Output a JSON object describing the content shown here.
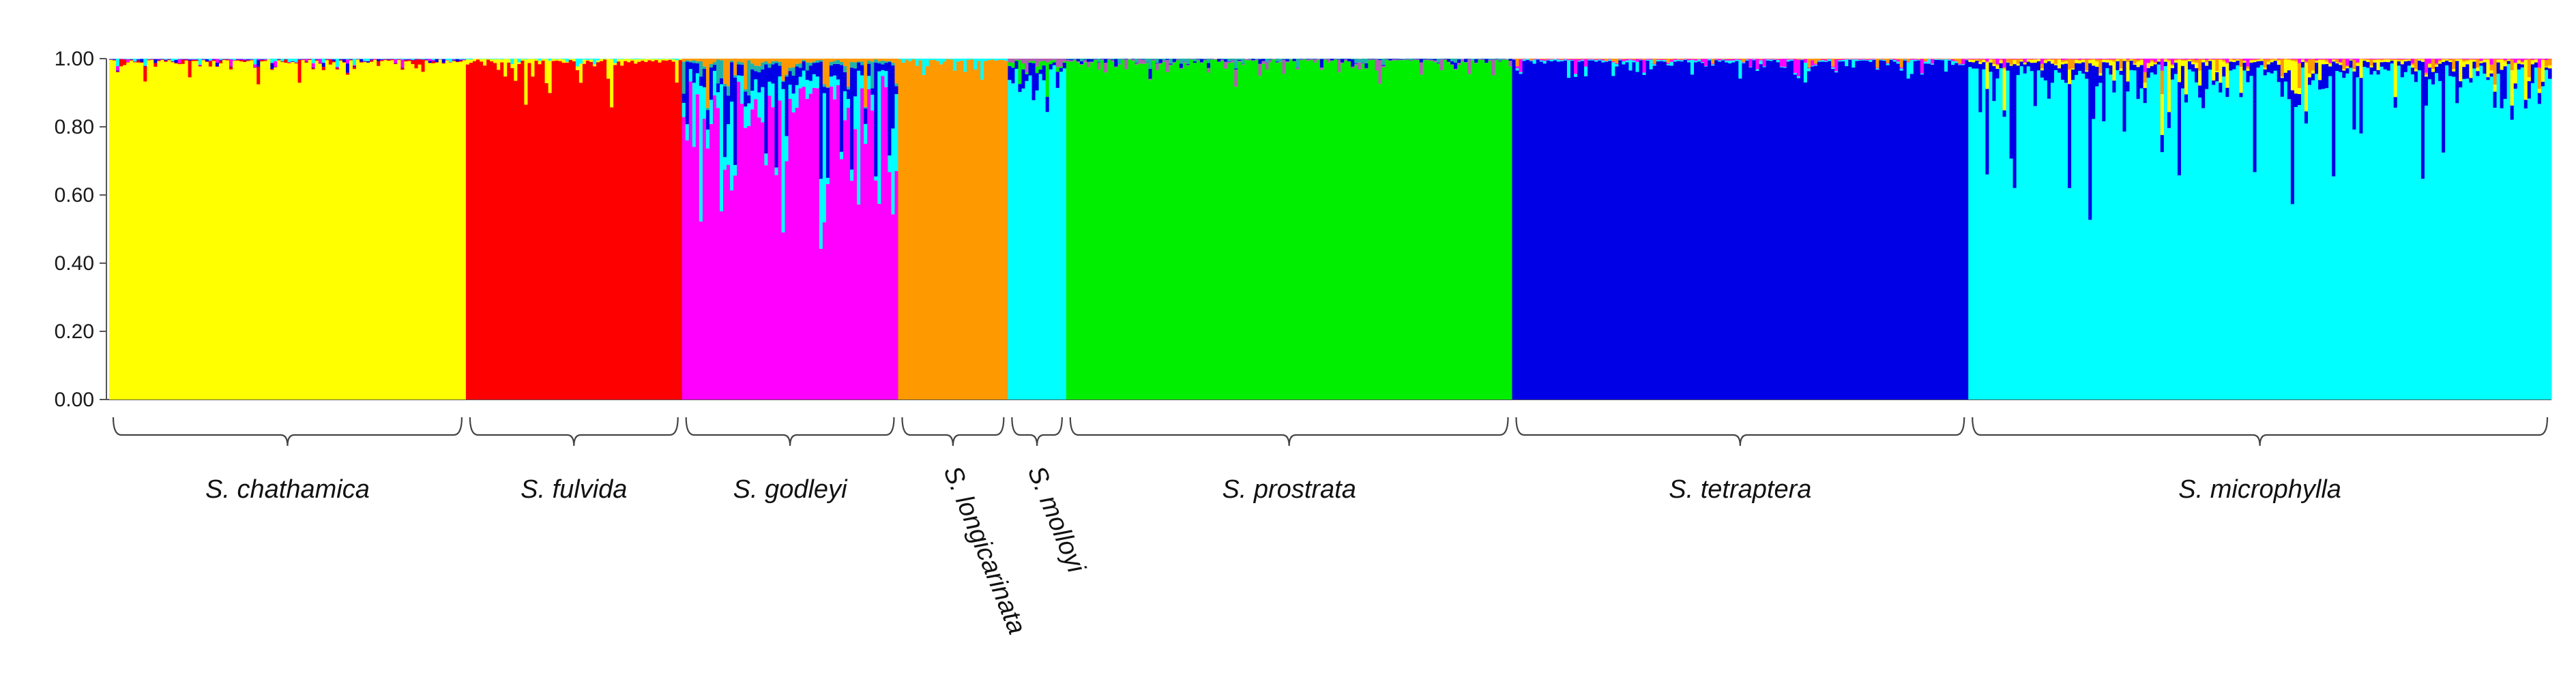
{
  "chart_data": {
    "type": "bar",
    "stacked": true,
    "title": "",
    "xlabel": "",
    "ylabel": "",
    "ylim": [
      0,
      1
    ],
    "yticks": [
      "0.00",
      "0.20",
      "0.40",
      "0.60",
      "0.80",
      "1.00"
    ],
    "grid": false,
    "legend": "none",
    "cluster_colors": {
      "yellow": "#ffff00",
      "red": "#ff0000",
      "magenta": "#ff00ff",
      "blue": "#0000e6",
      "orange": "#ff9900",
      "cyan": "#00ffff",
      "green": "#00ee00",
      "teal": "#20b2aa",
      "purple": "#b060b0"
    },
    "groups": [
      {
        "name": "S. chathamica",
        "n_individuals": 104,
        "mean_membership": {
          "yellow": 0.95,
          "red": 0.02,
          "blue": 0.01,
          "magenta": 0.01,
          "cyan": 0.01
        }
      },
      {
        "name": "S. fulvida",
        "n_individuals": 63,
        "mean_membership": {
          "red": 0.93,
          "yellow": 0.06,
          "cyan": 0.01
        }
      },
      {
        "name": "S. godleyi",
        "n_individuals": 63,
        "mean_membership": {
          "magenta": 0.45,
          "cyan": 0.25,
          "blue": 0.2,
          "teal": 0.05,
          "orange": 0.05
        }
      },
      {
        "name": "S. longicarinata",
        "n_individuals": 32,
        "mean_membership": {
          "orange": 0.96,
          "cyan": 0.04
        }
      },
      {
        "name": "S. molloyi",
        "n_individuals": 17,
        "mean_membership": {
          "cyan": 0.7,
          "blue": 0.18,
          "green": 0.06,
          "purple": 0.06
        }
      },
      {
        "name": "S. prostrata",
        "n_individuals": 130,
        "mean_membership": {
          "green": 0.96,
          "purple": 0.02,
          "blue": 0.01,
          "teal": 0.01
        }
      },
      {
        "name": "S. tetraptera",
        "n_individuals": 133,
        "mean_membership": {
          "blue": 0.94,
          "cyan": 0.03,
          "magenta": 0.02,
          "orange": 0.01
        }
      },
      {
        "name": "S. microphylla",
        "n_individuals": 170,
        "mean_membership": {
          "cyan": 0.72,
          "blue": 0.2,
          "yellow": 0.05,
          "orange": 0.02,
          "magenta": 0.01
        }
      }
    ]
  }
}
